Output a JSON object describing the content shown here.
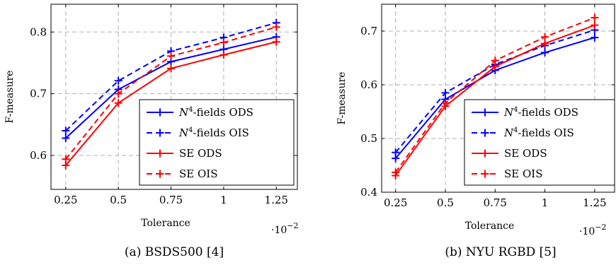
{
  "chart_data": [
    {
      "type": "line",
      "caption": "(a) BSDS500 [4]",
      "xlabel": "Tolerance",
      "ylabel": "F-measure",
      "x_scale_note": "·10",
      "x_scale_exp": "−2",
      "x": [
        0.25,
        0.5,
        0.75,
        1,
        1.25
      ],
      "x_ticks": [
        "0.25",
        "0.5",
        "0.75",
        "1",
        "1.25"
      ],
      "xlim": [
        0.18,
        1.35
      ],
      "ylim": [
        0.545,
        0.845
      ],
      "y_ticks": [
        0.6,
        0.7,
        0.8
      ],
      "y_tick_labels": [
        "0.6",
        "0.7",
        "0.8"
      ],
      "grid": true,
      "legend_position": "bottom-right",
      "series": [
        {
          "name_base": "N",
          "name_sup": "4",
          "name_rest": "-fields ODS",
          "color": "#0000ff",
          "dashed": false,
          "values": [
            0.628,
            0.707,
            0.752,
            0.772,
            0.792
          ]
        },
        {
          "name_base": "N",
          "name_sup": "4",
          "name_rest": "-fields OIS",
          "color": "#0000ff",
          "dashed": true,
          "values": [
            0.64,
            0.721,
            0.769,
            0.791,
            0.815
          ]
        },
        {
          "name_base": "SE ODS",
          "name_sup": "",
          "name_rest": "",
          "color": "#ff0000",
          "dashed": false,
          "values": [
            0.584,
            0.685,
            0.741,
            0.763,
            0.784
          ]
        },
        {
          "name_base": "SE OIS",
          "name_sup": "",
          "name_rest": "",
          "color": "#ff0000",
          "dashed": true,
          "values": [
            0.594,
            0.7,
            0.761,
            0.783,
            0.808
          ]
        }
      ]
    },
    {
      "type": "line",
      "caption": "(b) NYU RGBD [5]",
      "xlabel": "Tolerance",
      "ylabel": "F-measure",
      "x_scale_note": "·10",
      "x_scale_exp": "−2",
      "x": [
        0.25,
        0.5,
        0.75,
        1,
        1.25
      ],
      "x_ticks": [
        "0.25",
        "0.5",
        "0.75",
        "1",
        "1.25"
      ],
      "xlim": [
        0.18,
        1.35
      ],
      "ylim": [
        0.4,
        0.75
      ],
      "y_ticks": [
        0.4,
        0.5,
        0.6,
        0.7
      ],
      "y_tick_labels": [
        "0.4",
        "0.5",
        "0.6",
        "0.7"
      ],
      "grid": true,
      "legend_position": "bottom-right",
      "series": [
        {
          "name_base": "N",
          "name_sup": "4",
          "name_rest": "-fields ODS",
          "color": "#0000ff",
          "dashed": false,
          "values": [
            0.463,
            0.573,
            0.627,
            0.66,
            0.688
          ]
        },
        {
          "name_base": "N",
          "name_sup": "4",
          "name_rest": "-fields OIS",
          "color": "#0000ff",
          "dashed": true,
          "values": [
            0.474,
            0.585,
            0.638,
            0.673,
            0.702
          ]
        },
        {
          "name_base": "SE ODS",
          "name_sup": "",
          "name_rest": "",
          "color": "#ff0000",
          "dashed": false,
          "values": [
            0.431,
            0.56,
            0.634,
            0.677,
            0.711
          ]
        },
        {
          "name_base": "SE OIS",
          "name_sup": "",
          "name_rest": "",
          "color": "#ff0000",
          "dashed": true,
          "values": [
            0.437,
            0.566,
            0.645,
            0.689,
            0.725
          ]
        }
      ]
    }
  ]
}
